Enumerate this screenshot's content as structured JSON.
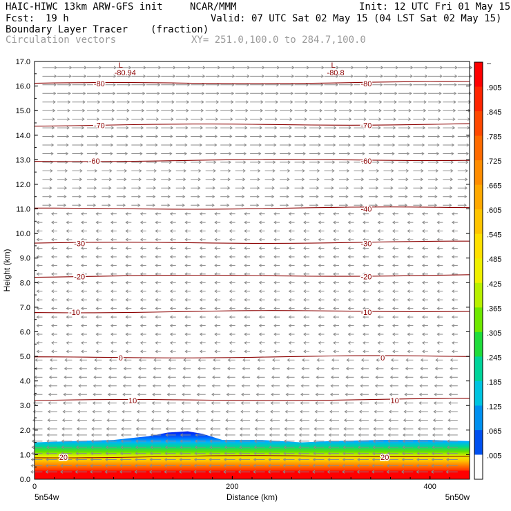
{
  "header": {
    "model": "HAIC-HIWC 13km ARW-GFS init",
    "center": "NCAR/MMM",
    "init": "Init: 12 UTC Fri 01 May 15",
    "fcst_label": "Fcst:",
    "fcst_value": "19 h",
    "valid": "Valid: 07 UTC Sat 02 May 15 (04 LST Sat 02 May 15)",
    "field": "Boundary Layer Tracer",
    "units": "(fraction)",
    "overlay": "Circulation vectors",
    "xy": "XY= 251.0,100.0 to 284.7,100.0"
  },
  "chart_data": {
    "type": "heatmap",
    "xlabel": "Distance (km)",
    "ylabel": "Height (km)",
    "xlim": [
      0,
      440
    ],
    "ylim": [
      0,
      17
    ],
    "x_ticks": [
      0,
      200,
      400
    ],
    "x_tick_labels": [
      "0",
      "200",
      "400"
    ],
    "y_ticks": [
      0.0,
      1.0,
      2.0,
      3.0,
      4.0,
      5.0,
      6.0,
      7.0,
      8.0,
      9.0,
      10.0,
      11.0,
      12.0,
      13.0,
      14.0,
      15.0,
      16.0,
      17.0
    ],
    "y_tick_labels": [
      "0.0",
      "1.0",
      "2.0",
      "3.0",
      "4.0",
      "5.0",
      "6.0",
      "7.0",
      "8.0",
      "9.0",
      "10.0",
      "11.0",
      "12.0",
      "13.0",
      "14.0",
      "15.0",
      "16.0",
      "17.0"
    ],
    "endpoint_labels": [
      "5n54w",
      "5n50w"
    ],
    "colorbar": {
      "labels": [
        "–",
        ".905",
        ".845",
        ".785",
        ".725",
        ".665",
        ".605",
        ".545",
        ".485",
        ".425",
        ".365",
        ".305",
        ".245",
        ".185",
        ".125",
        ".065",
        ".005"
      ],
      "colors": [
        "#ff0000",
        "#ff2400",
        "#ff4800",
        "#ff6a00",
        "#ff8c00",
        "#ffa800",
        "#ffc400",
        "#ffe000",
        "#f0f000",
        "#b8f000",
        "#6ee800",
        "#1fdc3c",
        "#00d49a",
        "#00c4e0",
        "#0090f0",
        "#0050f0",
        "#ffffff"
      ]
    },
    "tracer_top_km": [
      {
        "x": 0,
        "z": 1.5
      },
      {
        "x": 40,
        "z": 1.55
      },
      {
        "x": 80,
        "z": 1.6
      },
      {
        "x": 115,
        "z": 1.75
      },
      {
        "x": 135,
        "z": 1.9
      },
      {
        "x": 155,
        "z": 1.95
      },
      {
        "x": 170,
        "z": 1.85
      },
      {
        "x": 190,
        "z": 1.6
      },
      {
        "x": 230,
        "z": 1.6
      },
      {
        "x": 270,
        "z": 1.5
      },
      {
        "x": 300,
        "z": 1.55
      },
      {
        "x": 350,
        "z": 1.6
      },
      {
        "x": 400,
        "z": 1.6
      },
      {
        "x": 440,
        "z": 1.55
      }
    ],
    "temperature_contours": [
      {
        "value": 20,
        "label": "20",
        "z": 0.9,
        "label_x": [
          25,
          350
        ]
      },
      {
        "value": 10,
        "label": "10",
        "z": 3.2,
        "label_x": [
          95,
          360
        ]
      },
      {
        "value": 0,
        "label": "0",
        "z": 4.95,
        "label_x": [
          85,
          350
        ]
      },
      {
        "value": -10,
        "label": "-10",
        "z": 6.8,
        "label_x": [
          35,
          330
        ]
      },
      {
        "value": -20,
        "label": "-20",
        "z": 8.25,
        "label_x": [
          40,
          330
        ]
      },
      {
        "value": -30,
        "label": "-30",
        "z": 9.6,
        "label_x": [
          40,
          330
        ]
      },
      {
        "value": -40,
        "label": "-40",
        "z": 11.0,
        "label_x": [
          330
        ]
      },
      {
        "value": -60,
        "label": "-60",
        "z": 12.95,
        "label_x": [
          55,
          330
        ]
      },
      {
        "value": -70,
        "label": "-70",
        "z": 14.4,
        "label_x": [
          60,
          330
        ]
      },
      {
        "value": -80,
        "label": "-80",
        "z": 16.1,
        "label_x": [
          60,
          330
        ]
      }
    ],
    "minima": [
      {
        "x": 85,
        "z": 16.75,
        "mark": "L",
        "value": "-80.94"
      },
      {
        "x": 300,
        "z": 16.75,
        "mark": "L",
        "value": "-80.8"
      }
    ]
  }
}
